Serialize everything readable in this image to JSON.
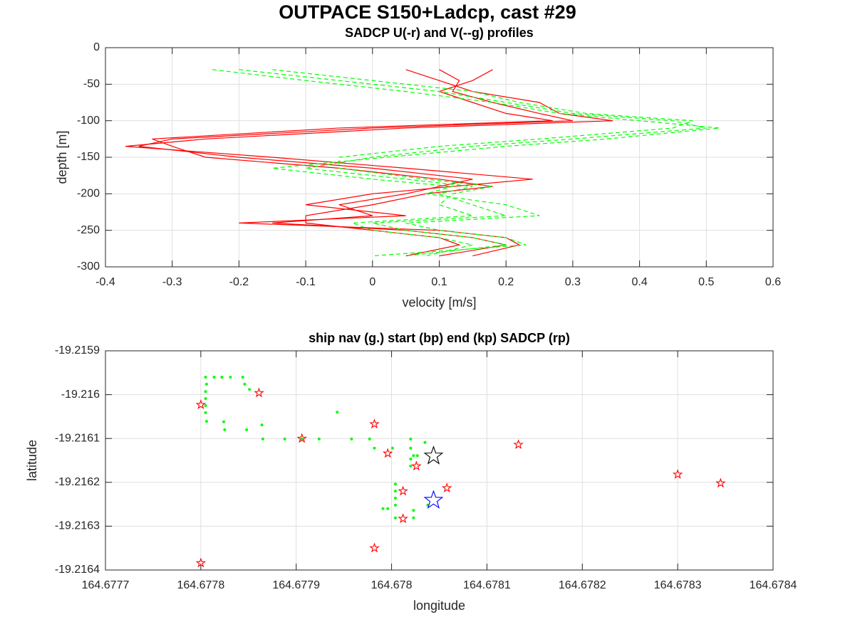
{
  "title": "OUTPACE S150+Ladcp, cast #29",
  "chart_data": [
    {
      "type": "profile",
      "title": "SADCP U(-r) and V(--g) profiles",
      "xlabel": "velocity [m/s]",
      "ylabel": "depth [m]",
      "xlim": [
        -0.4,
        0.6
      ],
      "xticks": [
        -0.4,
        -0.3,
        -0.2,
        -0.1,
        0,
        0.1,
        0.2,
        0.3,
        0.4,
        0.5,
        0.6
      ],
      "ylim": [
        -300,
        0
      ],
      "yticks": [
        -300,
        -250,
        -200,
        -150,
        -100,
        -50,
        0
      ],
      "grid": true,
      "y": [
        -30,
        -45,
        -60,
        -75,
        -90,
        -100,
        -110,
        -125,
        -135,
        -150,
        -165,
        -180,
        -190,
        -200,
        -215,
        -230,
        -240,
        -250,
        -260,
        -270,
        -285
      ],
      "series": [
        {
          "color": "#ff0000",
          "dashed": false,
          "values": [
            0.1,
            0.13,
            0.12,
            0.18,
            0.25,
            0.3,
            0.0,
            -0.3,
            -0.35,
            -0.2,
            0.0,
            0.15,
            0.1,
            0.05,
            -0.05,
            0.0,
            -0.15,
            0.05,
            0.15,
            0.2,
            0.1
          ]
        },
        {
          "color": "#ff0000",
          "dashed": false,
          "values": [
            0.05,
            0.1,
            0.15,
            0.25,
            0.28,
            0.36,
            0.05,
            -0.25,
            -0.37,
            -0.15,
            0.05,
            0.24,
            0.12,
            0.0,
            -0.1,
            0.05,
            -0.2,
            0.1,
            0.2,
            0.22,
            0.15
          ]
        },
        {
          "color": "#ff0000",
          "dashed": false,
          "values": [
            0.18,
            0.15,
            0.1,
            0.15,
            0.2,
            0.27,
            -0.05,
            -0.33,
            -0.3,
            -0.25,
            -0.05,
            0.1,
            0.18,
            0.08,
            0.0,
            -0.1,
            -0.1,
            0.0,
            0.1,
            0.13,
            0.05
          ]
        },
        {
          "color": "#00ff00",
          "dashed": true,
          "values": [
            -0.2,
            -0.05,
            0.1,
            0.2,
            0.3,
            0.45,
            0.5,
            0.3,
            0.15,
            0.0,
            -0.1,
            0.05,
            0.15,
            0.1,
            0.15,
            0.2,
            0.0,
            0.05,
            0.15,
            0.2,
            0.05
          ]
        },
        {
          "color": "#00ff00",
          "dashed": true,
          "values": [
            -0.24,
            -0.1,
            0.05,
            0.18,
            0.28,
            0.4,
            0.52,
            0.35,
            0.2,
            0.02,
            -0.15,
            0.0,
            0.12,
            0.08,
            0.2,
            0.25,
            0.05,
            0.1,
            0.2,
            0.23,
            0.0
          ]
        },
        {
          "color": "#00ff00",
          "dashed": true,
          "values": [
            -0.15,
            0.0,
            0.15,
            0.22,
            0.32,
            0.48,
            0.45,
            0.25,
            0.1,
            -0.05,
            -0.05,
            0.08,
            0.18,
            0.12,
            0.1,
            0.15,
            -0.03,
            0.0,
            0.1,
            0.15,
            0.08
          ]
        }
      ]
    },
    {
      "type": "scatter",
      "title": "ship nav (g.) start (bp) end (kp) SADCP (rp)",
      "xlabel": "longitude",
      "ylabel": "latitude",
      "xlim": [
        164.6777,
        164.6784
      ],
      "xticks": [
        164.6777,
        164.6778,
        164.6779,
        164.678,
        164.6781,
        164.6782,
        164.6783,
        164.6784
      ],
      "ylim": [
        -19.2164,
        -19.2159
      ],
      "yticks": [
        -19.2164,
        -19.2163,
        -19.2162,
        -19.2161,
        -19.216,
        -19.2159
      ],
      "grid": true,
      "series": [
        {
          "color": "#00ff00",
          "marker": "dot",
          "x": [
            164.677805,
            164.677814,
            164.677822,
            164.677831,
            164.677844,
            164.677846,
            164.677851,
            164.677806,
            164.677805,
            164.677805,
            164.677805,
            164.677805,
            164.677806,
            164.677824,
            164.677825,
            164.677848,
            164.677864,
            164.677865,
            164.677888,
            164.677906,
            164.677924,
            164.677943,
            164.677958,
            164.677977,
            164.677982,
            164.678001,
            164.67802,
            164.67802,
            164.67802,
            164.67802,
            164.678023,
            164.678027,
            164.678035,
            164.678004,
            164.678004,
            164.678004,
            164.678004,
            164.678004,
            164.677996,
            164.677991,
            164.678023,
            164.678023,
            164.678038
          ],
          "y": [
            -19.21596,
            -19.21596,
            -19.21596,
            -19.21596,
            -19.21596,
            -19.215976,
            -19.215988,
            -19.215976,
            -19.215993,
            -19.216009,
            -19.216025,
            -19.216041,
            -19.216061,
            -19.216062,
            -19.21608,
            -19.21608,
            -19.216069,
            -19.216101,
            -19.216101,
            -19.216101,
            -19.216101,
            -19.21604,
            -19.216101,
            -19.216101,
            -19.216122,
            -19.216122,
            -19.216101,
            -19.216122,
            -19.216147,
            -19.216163,
            -19.216139,
            -19.216139,
            -19.216109,
            -19.216204,
            -19.21622,
            -19.216236,
            -19.216252,
            -19.216281,
            -19.21626,
            -19.21626,
            -19.216281,
            -19.216264,
            -19.216252
          ]
        },
        {
          "color": "#ff0000",
          "marker": "star",
          "x": [
            164.6778,
            164.677861,
            164.677906,
            164.677982,
            164.677996,
            164.678026,
            164.678012,
            164.678058,
            164.678133,
            164.6783,
            164.678345,
            164.678012,
            164.677982,
            164.6778
          ],
          "y": [
            -19.216023,
            -19.215996,
            -19.2161,
            -19.216067,
            -19.216134,
            -19.216163,
            -19.21622,
            -19.216213,
            -19.216114,
            -19.216182,
            -19.216202,
            -19.216283,
            -19.21635,
            -19.216384
          ]
        },
        {
          "color": "#000000",
          "marker": "big-star",
          "x": [
            164.678044
          ],
          "y": [
            -19.21614
          ]
        },
        {
          "color": "#0000ff",
          "marker": "big-star",
          "x": [
            164.678044
          ],
          "y": [
            -19.216241
          ]
        }
      ]
    }
  ]
}
